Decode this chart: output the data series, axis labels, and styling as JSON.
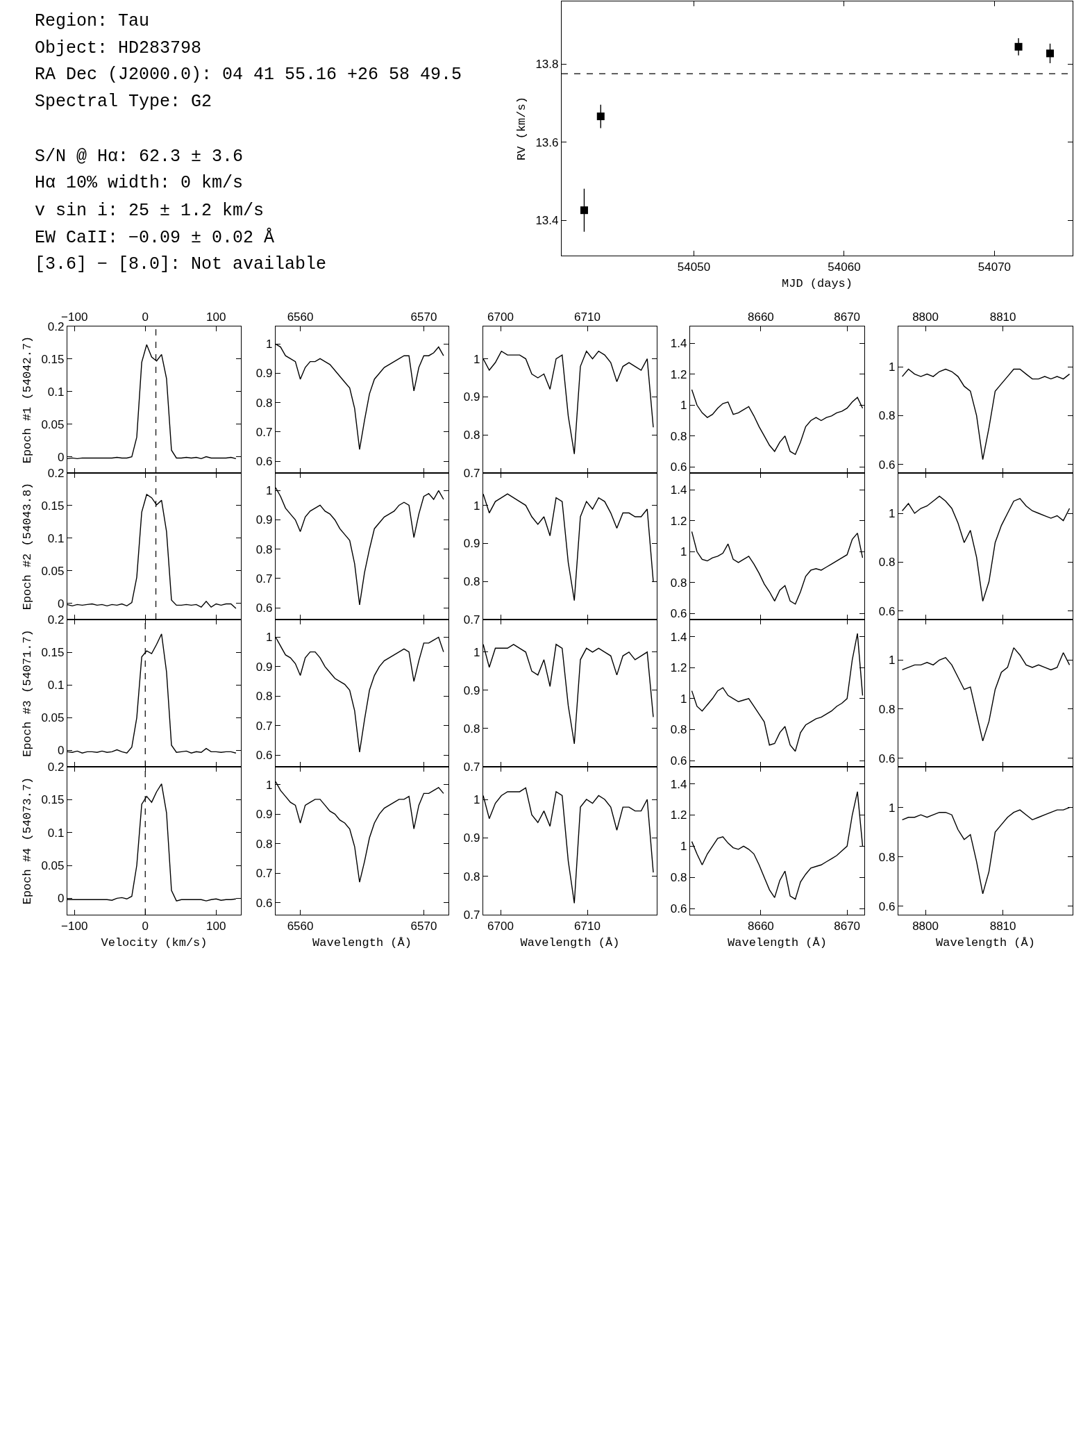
{
  "chart_data": [
    {
      "type": "other",
      "annotations": [
        "Region: Tau",
        "Object: HD283798",
        "RA Dec (J2000.0): 04 41 55.16 +26 58 49.5",
        "Spectral Type: G2",
        "S/N @ Hα: 62.3 ± 3.6",
        "Hα 10% width: 0 km/s",
        "v sin i: 25 ± 1.2 km/s",
        "EW CaII: −0.09 ± 0.02 Å",
        "[3.6] − [8.0]: Not available"
      ]
    },
    {
      "type": "scatter",
      "xlabel": "MJD (days)",
      "ylabel": "RV (km/s)",
      "marker": "square",
      "color": "#000000",
      "x": [
        54042.7,
        54043.8,
        54071.6,
        54073.7
      ],
      "values": [
        13.426,
        13.666,
        13.844,
        13.827
      ],
      "errors": [
        0.055,
        0.03,
        0.022,
        0.025
      ],
      "xlim": [
        54041.2,
        54075.2
      ],
      "ylim": [
        13.31,
        13.96
      ],
      "xticks": [
        54050,
        54060,
        54070
      ],
      "yticks": [
        13.4,
        13.6,
        13.8
      ],
      "ref_lines": [
        {
          "axis": "y",
          "value": 13.775,
          "line_style": "dashed"
        }
      ]
    },
    {
      "type": "line",
      "color": "#000000",
      "ylabel": "Epoch #1 (54042.7)",
      "x": [
        -110,
        -103,
        -96,
        -89,
        -82,
        -75,
        -68,
        -61,
        -54,
        -47,
        -40,
        -33,
        -26,
        -19,
        -12,
        -5,
        2,
        9,
        16,
        23,
        30,
        37,
        44,
        51,
        58,
        65,
        72,
        79,
        86,
        93,
        100,
        107,
        114,
        121,
        128
      ],
      "values": [
        -0.003,
        -0.002,
        -0.003,
        -0.002,
        -0.002,
        -0.002,
        -0.002,
        -0.002,
        -0.002,
        -0.002,
        -0.001,
        -0.002,
        -0.002,
        0.0,
        0.03,
        0.145,
        0.172,
        0.153,
        0.147,
        0.157,
        0.12,
        0.01,
        -0.002,
        -0.002,
        -0.001,
        -0.002,
        -0.001,
        -0.003,
        0.0,
        -0.002,
        -0.002,
        -0.002,
        -0.002,
        -0.001,
        -0.003
      ],
      "xlim": [
        -110,
        135
      ],
      "ylim": [
        -0.025,
        0.2
      ],
      "x2lim": [
        -110,
        135
      ],
      "x2ticks": [
        {
          "value": -100,
          "label": "−100"
        },
        0,
        100
      ],
      "yticks": [
        0,
        0.05,
        0.1,
        0.15,
        0.2
      ],
      "tick_labels": "y",
      "ref_lines": [
        {
          "axis": "x",
          "value": 15,
          "line_style": "dashed"
        }
      ]
    },
    {
      "type": "line",
      "color": "#000000",
      "x": [
        6558,
        6558.4,
        6558.8,
        6559.2,
        6559.6,
        6560,
        6560.4,
        6560.8,
        6561.2,
        6561.6,
        6562,
        6562.4,
        6562.8,
        6563.2,
        6563.6,
        6564,
        6564.4,
        6564.8,
        6565.2,
        6565.6,
        6566,
        6566.4,
        6566.8,
        6567.2,
        6567.6,
        6568,
        6568.4,
        6568.8,
        6569.2,
        6569.6,
        6570,
        6570.4,
        6570.8,
        6571.2,
        6571.6
      ],
      "values": [
        1.0,
        0.99,
        0.96,
        0.95,
        0.94,
        0.88,
        0.92,
        0.94,
        0.94,
        0.95,
        0.94,
        0.93,
        0.91,
        0.89,
        0.87,
        0.85,
        0.78,
        0.64,
        0.74,
        0.83,
        0.88,
        0.9,
        0.92,
        0.93,
        0.94,
        0.95,
        0.96,
        0.96,
        0.84,
        0.92,
        0.96,
        0.96,
        0.97,
        0.99,
        0.96
      ],
      "xlim": [
        6558,
        6572
      ],
      "ylim": [
        0.56,
        1.06
      ],
      "x2lim": [
        6558,
        6572
      ],
      "x2ticks": [
        6560,
        6570
      ],
      "yticks": [
        0.6,
        0.7,
        0.8,
        0.9,
        1
      ],
      "tick_labels": "y"
    },
    {
      "type": "line",
      "color": "#000000",
      "x": [
        6698,
        6698.7,
        6699.4,
        6700.1,
        6700.8,
        6701.5,
        6702.2,
        6702.9,
        6703.6,
        6704.3,
        6705,
        6705.7,
        6706.4,
        6707.1,
        6707.8,
        6708.5,
        6709.2,
        6709.9,
        6710.6,
        6711.3,
        6712,
        6712.7,
        6713.4,
        6714.1,
        6714.8,
        6715.5,
        6716.2,
        6716.9,
        6717.6
      ],
      "values": [
        1.0,
        0.97,
        0.99,
        1.02,
        1.01,
        1.01,
        1.01,
        1.0,
        0.96,
        0.95,
        0.96,
        0.92,
        1.0,
        1.01,
        0.85,
        0.75,
        0.98,
        1.02,
        1.0,
        1.02,
        1.01,
        0.99,
        0.94,
        0.98,
        0.99,
        0.98,
        0.97,
        1.0,
        0.82
      ],
      "xlim": [
        6698,
        6718
      ],
      "ylim": [
        0.7,
        1.085
      ],
      "x2lim": [
        6698,
        6718
      ],
      "x2ticks": [
        6700,
        6710
      ],
      "yticks": [
        0.7,
        0.8,
        0.9,
        1
      ],
      "tick_labels": "y"
    },
    {
      "type": "line",
      "color": "#000000",
      "x": [
        8652,
        8652.6,
        8653.2,
        8653.8,
        8654.4,
        8655,
        8655.6,
        8656.2,
        8656.8,
        8657.4,
        8658,
        8658.6,
        8659.2,
        8659.8,
        8660.4,
        8661,
        8661.6,
        8662.2,
        8662.8,
        8663.4,
        8664,
        8664.6,
        8665.2,
        8665.8,
        8666.4,
        8667,
        8667.6,
        8668.2,
        8668.8,
        8669.4,
        8670,
        8670.6,
        8671.2,
        8671.8
      ],
      "values": [
        1.1,
        1.0,
        0.95,
        0.92,
        0.94,
        0.98,
        1.01,
        1.02,
        0.94,
        0.95,
        0.97,
        0.99,
        0.93,
        0.86,
        0.8,
        0.74,
        0.7,
        0.76,
        0.8,
        0.7,
        0.68,
        0.76,
        0.86,
        0.9,
        0.92,
        0.9,
        0.92,
        0.93,
        0.95,
        0.96,
        0.98,
        1.02,
        1.05,
        0.98
      ],
      "xlim": [
        8651.8,
        8672
      ],
      "ylim": [
        0.56,
        1.51
      ],
      "x2lim": [
        8651.8,
        8672
      ],
      "x2ticks": [
        8660,
        8670
      ],
      "yticks": [
        0.6,
        0.8,
        1,
        1.2,
        1.4
      ],
      "tick_labels": "y"
    },
    {
      "type": "line",
      "color": "#000000",
      "x": [
        8797,
        8797.8,
        8798.6,
        8799.4,
        8800.2,
        8801,
        8801.8,
        8802.6,
        8803.4,
        8804.2,
        8805,
        8805.8,
        8806.6,
        8807.4,
        8808.2,
        8809,
        8809.8,
        8810.6,
        8811.4,
        8812.2,
        8813,
        8813.8,
        8814.6,
        8815.4,
        8816.2,
        8817,
        8817.8,
        8818.6
      ],
      "values": [
        0.96,
        0.99,
        0.97,
        0.96,
        0.97,
        0.96,
        0.98,
        0.99,
        0.98,
        0.96,
        0.92,
        0.9,
        0.8,
        0.62,
        0.75,
        0.9,
        0.93,
        0.96,
        0.99,
        0.99,
        0.97,
        0.95,
        0.95,
        0.96,
        0.95,
        0.96,
        0.95,
        0.97
      ],
      "xlim": [
        8796.5,
        8819
      ],
      "ylim": [
        0.565,
        1.165
      ],
      "x2lim": [
        8796.5,
        8819
      ],
      "x2ticks": [
        8800,
        8810
      ],
      "yticks": [
        0.6,
        0.8,
        1
      ],
      "tick_labels": "y"
    },
    {
      "type": "line",
      "color": "#000000",
      "ylabel": "Epoch #2 (54043.8)",
      "x": [
        -110,
        -103,
        -96,
        -89,
        -82,
        -75,
        -68,
        -61,
        -54,
        -47,
        -40,
        -33,
        -26,
        -19,
        -12,
        -5,
        2,
        9,
        16,
        23,
        30,
        37,
        44,
        51,
        58,
        65,
        72,
        79,
        86,
        93,
        100,
        107,
        114,
        121,
        128
      ],
      "values": [
        -0.002,
        -0.004,
        -0.002,
        -0.003,
        -0.002,
        -0.001,
        -0.003,
        -0.002,
        -0.004,
        -0.002,
        -0.003,
        -0.001,
        -0.004,
        0.001,
        0.04,
        0.14,
        0.167,
        0.162,
        0.151,
        0.158,
        0.11,
        0.005,
        -0.003,
        -0.003,
        -0.002,
        -0.003,
        -0.002,
        -0.006,
        0.003,
        -0.006,
        -0.001,
        -0.003,
        -0.001,
        -0.001,
        -0.008
      ],
      "xlim": [
        -110,
        135
      ],
      "ylim": [
        -0.025,
        0.2
      ],
      "xticks": [
        -100,
        0,
        100
      ],
      "yticks": [
        0,
        0.05,
        0.1,
        0.15,
        0.2
      ],
      "tick_labels": "y",
      "ref_lines": [
        {
          "axis": "x",
          "value": 15,
          "line_style": "dashed"
        }
      ]
    },
    {
      "type": "line",
      "color": "#000000",
      "x": [
        6558,
        6558.4,
        6558.8,
        6559.2,
        6559.6,
        6560,
        6560.4,
        6560.8,
        6561.2,
        6561.6,
        6562,
        6562.4,
        6562.8,
        6563.2,
        6563.6,
        6564,
        6564.4,
        6564.8,
        6565.2,
        6565.6,
        6566,
        6566.4,
        6566.8,
        6567.2,
        6567.6,
        6568,
        6568.4,
        6568.8,
        6569.2,
        6569.6,
        6570,
        6570.4,
        6570.8,
        6571.2,
        6571.6
      ],
      "values": [
        1.01,
        0.98,
        0.94,
        0.92,
        0.9,
        0.86,
        0.91,
        0.93,
        0.94,
        0.95,
        0.93,
        0.92,
        0.9,
        0.87,
        0.85,
        0.83,
        0.75,
        0.61,
        0.72,
        0.8,
        0.87,
        0.89,
        0.91,
        0.92,
        0.93,
        0.95,
        0.96,
        0.95,
        0.84,
        0.92,
        0.98,
        0.99,
        0.97,
        1.0,
        0.97
      ],
      "xlim": [
        6558,
        6572
      ],
      "ylim": [
        0.56,
        1.06
      ],
      "xticks": [
        6560,
        6570
      ],
      "yticks": [
        0.6,
        0.7,
        0.8,
        0.9,
        1
      ],
      "tick_labels": "y"
    },
    {
      "type": "line",
      "color": "#000000",
      "x": [
        6698,
        6698.7,
        6699.4,
        6700.1,
        6700.8,
        6701.5,
        6702.2,
        6702.9,
        6703.6,
        6704.3,
        6705,
        6705.7,
        6706.4,
        6707.1,
        6707.8,
        6708.5,
        6709.2,
        6709.9,
        6710.6,
        6711.3,
        6712,
        6712.7,
        6713.4,
        6714.1,
        6714.8,
        6715.5,
        6716.2,
        6716.9,
        6717.6
      ],
      "values": [
        1.03,
        0.98,
        1.01,
        1.02,
        1.03,
        1.02,
        1.01,
        1.0,
        0.97,
        0.95,
        0.97,
        0.92,
        1.02,
        1.01,
        0.85,
        0.75,
        0.97,
        1.01,
        0.99,
        1.02,
        1.01,
        0.98,
        0.94,
        0.98,
        0.98,
        0.97,
        0.97,
        0.99,
        0.8
      ],
      "xlim": [
        6698,
        6718
      ],
      "ylim": [
        0.7,
        1.085
      ],
      "xticks": [
        6700,
        6710
      ],
      "yticks": [
        0.7,
        0.8,
        0.9,
        1
      ],
      "tick_labels": "y"
    },
    {
      "type": "line",
      "color": "#000000",
      "x": [
        8652,
        8652.6,
        8653.2,
        8653.8,
        8654.4,
        8655,
        8655.6,
        8656.2,
        8656.8,
        8657.4,
        8658,
        8658.6,
        8659.2,
        8659.8,
        8660.4,
        8661,
        8661.6,
        8662.2,
        8662.8,
        8663.4,
        8664,
        8664.6,
        8665.2,
        8665.8,
        8666.4,
        8667,
        8667.6,
        8668.2,
        8668.8,
        8669.4,
        8670,
        8670.6,
        8671.2,
        8671.8
      ],
      "values": [
        1.13,
        1.0,
        0.95,
        0.94,
        0.96,
        0.97,
        0.99,
        1.05,
        0.95,
        0.93,
        0.95,
        0.97,
        0.92,
        0.86,
        0.79,
        0.74,
        0.68,
        0.75,
        0.78,
        0.68,
        0.66,
        0.74,
        0.84,
        0.88,
        0.89,
        0.88,
        0.9,
        0.92,
        0.94,
        0.96,
        0.98,
        1.08,
        1.12,
        0.96
      ],
      "xlim": [
        8651.8,
        8672
      ],
      "ylim": [
        0.56,
        1.51
      ],
      "xticks": [
        8660,
        8670
      ],
      "yticks": [
        0.6,
        0.8,
        1,
        1.2,
        1.4
      ],
      "tick_labels": "y"
    },
    {
      "type": "line",
      "color": "#000000",
      "x": [
        8797,
        8797.8,
        8798.6,
        8799.4,
        8800.2,
        8801,
        8801.8,
        8802.6,
        8803.4,
        8804.2,
        8805,
        8805.8,
        8806.6,
        8807.4,
        8808.2,
        8809,
        8809.8,
        8810.6,
        8811.4,
        8812.2,
        8813,
        8813.8,
        8814.6,
        8815.4,
        8816.2,
        8817,
        8817.8,
        8818.6
      ],
      "values": [
        1.01,
        1.04,
        1.0,
        1.02,
        1.03,
        1.05,
        1.07,
        1.05,
        1.02,
        0.96,
        0.88,
        0.93,
        0.82,
        0.64,
        0.72,
        0.88,
        0.95,
        1.0,
        1.05,
        1.06,
        1.03,
        1.01,
        1.0,
        0.99,
        0.98,
        0.99,
        0.97,
        1.02
      ],
      "xlim": [
        8796.5,
        8819
      ],
      "ylim": [
        0.565,
        1.165
      ],
      "xticks": [
        8800,
        8810
      ],
      "yticks": [
        0.6,
        0.8,
        1
      ],
      "tick_labels": "y"
    },
    {
      "type": "line",
      "color": "#000000",
      "ylabel": "Epoch #3 (54071.7)",
      "x": [
        -110,
        -103,
        -96,
        -89,
        -82,
        -75,
        -68,
        -61,
        -54,
        -47,
        -40,
        -33,
        -26,
        -19,
        -12,
        -5,
        2,
        9,
        16,
        23,
        30,
        37,
        44,
        51,
        58,
        65,
        72,
        79,
        86,
        93,
        100,
        107,
        114,
        121,
        128
      ],
      "values": [
        -0.002,
        -0.003,
        -0.001,
        -0.004,
        -0.002,
        -0.002,
        -0.003,
        -0.001,
        -0.003,
        -0.002,
        0.001,
        -0.002,
        -0.004,
        0.005,
        0.05,
        0.143,
        0.152,
        0.148,
        0.162,
        0.178,
        0.12,
        0.008,
        -0.003,
        -0.002,
        -0.001,
        -0.004,
        -0.002,
        -0.003,
        0.003,
        -0.002,
        -0.002,
        -0.003,
        -0.002,
        -0.002,
        -0.004
      ],
      "xlim": [
        -110,
        135
      ],
      "ylim": [
        -0.025,
        0.2
      ],
      "xticks": [
        -100,
        0,
        100
      ],
      "yticks": [
        0,
        0.05,
        0.1,
        0.15,
        0.2
      ],
      "tick_labels": "y",
      "ref_lines": [
        {
          "axis": "x",
          "value": 0,
          "line_style": "dashed"
        }
      ]
    },
    {
      "type": "line",
      "color": "#000000",
      "x": [
        6558,
        6558.4,
        6558.8,
        6559.2,
        6559.6,
        6560,
        6560.4,
        6560.8,
        6561.2,
        6561.6,
        6562,
        6562.4,
        6562.8,
        6563.2,
        6563.6,
        6564,
        6564.4,
        6564.8,
        6565.2,
        6565.6,
        6566,
        6566.4,
        6566.8,
        6567.2,
        6567.6,
        6568,
        6568.4,
        6568.8,
        6569.2,
        6569.6,
        6570,
        6570.4,
        6570.8,
        6571.2,
        6571.6
      ],
      "values": [
        1.0,
        0.97,
        0.94,
        0.93,
        0.91,
        0.87,
        0.93,
        0.95,
        0.95,
        0.93,
        0.9,
        0.88,
        0.86,
        0.85,
        0.84,
        0.82,
        0.75,
        0.61,
        0.72,
        0.82,
        0.87,
        0.9,
        0.92,
        0.93,
        0.94,
        0.95,
        0.96,
        0.95,
        0.85,
        0.92,
        0.98,
        0.98,
        0.99,
        1.0,
        0.95
      ],
      "xlim": [
        6558,
        6572
      ],
      "ylim": [
        0.56,
        1.06
      ],
      "xticks": [
        6560,
        6570
      ],
      "yticks": [
        0.6,
        0.7,
        0.8,
        0.9,
        1
      ],
      "tick_labels": "y"
    },
    {
      "type": "line",
      "color": "#000000",
      "x": [
        6698,
        6698.7,
        6699.4,
        6700.1,
        6700.8,
        6701.5,
        6702.2,
        6702.9,
        6703.6,
        6704.3,
        6705,
        6705.7,
        6706.4,
        6707.1,
        6707.8,
        6708.5,
        6709.2,
        6709.9,
        6710.6,
        6711.3,
        6712,
        6712.7,
        6713.4,
        6714.1,
        6714.8,
        6715.5,
        6716.2,
        6716.9,
        6717.6
      ],
      "values": [
        1.02,
        0.96,
        1.01,
        1.01,
        1.01,
        1.02,
        1.01,
        1.0,
        0.95,
        0.94,
        0.98,
        0.91,
        1.02,
        1.01,
        0.86,
        0.76,
        0.98,
        1.01,
        1.0,
        1.01,
        1.0,
        0.99,
        0.94,
        0.99,
        1.0,
        0.98,
        0.99,
        1.0,
        0.83
      ],
      "xlim": [
        6698,
        6718
      ],
      "ylim": [
        0.7,
        1.085
      ],
      "xticks": [
        6700,
        6710
      ],
      "yticks": [
        0.7,
        0.8,
        0.9,
        1
      ],
      "tick_labels": "y"
    },
    {
      "type": "line",
      "color": "#000000",
      "x": [
        8652,
        8652.6,
        8653.2,
        8653.8,
        8654.4,
        8655,
        8655.6,
        8656.2,
        8656.8,
        8657.4,
        8658,
        8658.6,
        8659.2,
        8659.8,
        8660.4,
        8661,
        8661.6,
        8662.2,
        8662.8,
        8663.4,
        8664,
        8664.6,
        8665.2,
        8665.8,
        8666.4,
        8667,
        8667.6,
        8668.2,
        8668.8,
        8669.4,
        8670,
        8670.6,
        8671.2,
        8671.8
      ],
      "values": [
        1.05,
        0.95,
        0.92,
        0.96,
        1.0,
        1.05,
        1.07,
        1.02,
        1.0,
        0.98,
        0.99,
        1.0,
        0.95,
        0.9,
        0.85,
        0.7,
        0.71,
        0.78,
        0.82,
        0.7,
        0.66,
        0.78,
        0.83,
        0.85,
        0.87,
        0.88,
        0.9,
        0.92,
        0.95,
        0.97,
        1.0,
        1.25,
        1.42,
        1.02
      ],
      "xlim": [
        8651.8,
        8672
      ],
      "ylim": [
        0.56,
        1.51
      ],
      "xticks": [
        8660,
        8670
      ],
      "yticks": [
        0.6,
        0.8,
        1,
        1.2,
        1.4
      ],
      "tick_labels": "y"
    },
    {
      "type": "line",
      "color": "#000000",
      "x": [
        8797,
        8797.8,
        8798.6,
        8799.4,
        8800.2,
        8801,
        8801.8,
        8802.6,
        8803.4,
        8804.2,
        8805,
        8805.8,
        8806.6,
        8807.4,
        8808.2,
        8809,
        8809.8,
        8810.6,
        8811.4,
        8812.2,
        8813,
        8813.8,
        8814.6,
        8815.4,
        8816.2,
        8817,
        8817.8,
        8818.6
      ],
      "values": [
        0.96,
        0.97,
        0.98,
        0.98,
        0.99,
        0.98,
        1.0,
        1.01,
        0.98,
        0.93,
        0.88,
        0.89,
        0.78,
        0.67,
        0.75,
        0.88,
        0.95,
        0.97,
        1.05,
        1.02,
        0.98,
        0.97,
        0.98,
        0.97,
        0.96,
        0.97,
        1.03,
        0.98
      ],
      "xlim": [
        8796.5,
        8819
      ],
      "ylim": [
        0.565,
        1.165
      ],
      "xticks": [
        8800,
        8810
      ],
      "yticks": [
        0.6,
        0.8,
        1
      ],
      "tick_labels": "y"
    },
    {
      "type": "line",
      "color": "#000000",
      "ylabel": "Epoch #4 (54073.7)",
      "xlabel": "Velocity (km/s)",
      "x": [
        -110,
        -103,
        -96,
        -89,
        -82,
        -75,
        -68,
        -61,
        -54,
        -47,
        -40,
        -33,
        -26,
        -19,
        -12,
        -5,
        2,
        9,
        16,
        23,
        30,
        37,
        44,
        51,
        58,
        65,
        72,
        79,
        86,
        93,
        100,
        107,
        114,
        121,
        128
      ],
      "values": [
        -0.002,
        -0.002,
        -0.002,
        -0.002,
        -0.002,
        -0.002,
        -0.002,
        -0.002,
        -0.002,
        -0.003,
        0.0,
        0.001,
        -0.001,
        0.003,
        0.05,
        0.143,
        0.155,
        0.146,
        0.162,
        0.174,
        0.13,
        0.012,
        -0.004,
        -0.002,
        -0.002,
        -0.002,
        -0.002,
        -0.002,
        -0.004,
        -0.002,
        -0.001,
        -0.003,
        -0.002,
        -0.002,
        -0.001
      ],
      "xlim": [
        -110,
        135
      ],
      "ylim": [
        -0.025,
        0.2
      ],
      "xticks": [
        {
          "value": -100,
          "label": "−100"
        },
        0,
        100
      ],
      "yticks": [
        0,
        0.05,
        0.1,
        0.15,
        0.2
      ],
      "ref_lines": [
        {
          "axis": "x",
          "value": 0,
          "line_style": "dashed"
        }
      ]
    },
    {
      "type": "line",
      "color": "#000000",
      "xlabel": "Wavelength (Å)",
      "x": [
        6558,
        6558.4,
        6558.8,
        6559.2,
        6559.6,
        6560,
        6560.4,
        6560.8,
        6561.2,
        6561.6,
        6562,
        6562.4,
        6562.8,
        6563.2,
        6563.6,
        6564,
        6564.4,
        6564.8,
        6565.2,
        6565.6,
        6566,
        6566.4,
        6566.8,
        6567.2,
        6567.6,
        6568,
        6568.4,
        6568.8,
        6569.2,
        6569.6,
        6570,
        6570.4,
        6570.8,
        6571.2,
        6571.6
      ],
      "values": [
        1.01,
        0.98,
        0.96,
        0.94,
        0.93,
        0.87,
        0.93,
        0.94,
        0.95,
        0.95,
        0.93,
        0.91,
        0.9,
        0.88,
        0.87,
        0.85,
        0.79,
        0.67,
        0.74,
        0.82,
        0.87,
        0.9,
        0.92,
        0.93,
        0.94,
        0.95,
        0.95,
        0.96,
        0.85,
        0.93,
        0.97,
        0.97,
        0.98,
        0.99,
        0.97
      ],
      "xlim": [
        6558,
        6572
      ],
      "ylim": [
        0.56,
        1.06
      ],
      "xticks": [
        6560,
        6570
      ],
      "yticks": [
        0.6,
        0.7,
        0.8,
        0.9,
        1
      ]
    },
    {
      "type": "line",
      "color": "#000000",
      "xlabel": "Wavelength (Å)",
      "x": [
        6698,
        6698.7,
        6699.4,
        6700.1,
        6700.8,
        6701.5,
        6702.2,
        6702.9,
        6703.6,
        6704.3,
        6705,
        6705.7,
        6706.4,
        6707.1,
        6707.8,
        6708.5,
        6709.2,
        6709.9,
        6710.6,
        6711.3,
        6712,
        6712.7,
        6713.4,
        6714.1,
        6714.8,
        6715.5,
        6716.2,
        6716.9,
        6717.6
      ],
      "values": [
        1.01,
        0.95,
        0.99,
        1.01,
        1.02,
        1.02,
        1.02,
        1.03,
        0.96,
        0.94,
        0.97,
        0.93,
        1.02,
        1.01,
        0.84,
        0.73,
        0.98,
        1.0,
        0.99,
        1.01,
        1.0,
        0.98,
        0.92,
        0.98,
        0.98,
        0.97,
        0.97,
        1.0,
        0.81
      ],
      "xlim": [
        6698,
        6718
      ],
      "ylim": [
        0.7,
        1.085
      ],
      "xticks": [
        6700,
        6710
      ],
      "yticks": [
        0.7,
        0.8,
        0.9,
        1
      ]
    },
    {
      "type": "line",
      "color": "#000000",
      "xlabel": "Wavelength (Å)",
      "x": [
        8652,
        8652.6,
        8653.2,
        8653.8,
        8654.4,
        8655,
        8655.6,
        8656.2,
        8656.8,
        8657.4,
        8658,
        8658.6,
        8659.2,
        8659.8,
        8660.4,
        8661,
        8661.6,
        8662.2,
        8662.8,
        8663.4,
        8664,
        8664.6,
        8665.2,
        8665.8,
        8666.4,
        8667,
        8667.6,
        8668.2,
        8668.8,
        8669.4,
        8670,
        8670.6,
        8671.2,
        8671.8
      ],
      "values": [
        1.03,
        0.95,
        0.88,
        0.95,
        1.0,
        1.05,
        1.06,
        1.02,
        0.99,
        0.98,
        1.0,
        0.98,
        0.95,
        0.88,
        0.8,
        0.72,
        0.67,
        0.78,
        0.84,
        0.68,
        0.66,
        0.77,
        0.82,
        0.86,
        0.87,
        0.88,
        0.9,
        0.92,
        0.94,
        0.97,
        1.0,
        1.2,
        1.35,
        1.0
      ],
      "xlim": [
        8651.8,
        8672
      ],
      "ylim": [
        0.56,
        1.51
      ],
      "xticks": [
        8660,
        8670
      ],
      "yticks": [
        0.6,
        0.8,
        1,
        1.2,
        1.4
      ]
    },
    {
      "type": "line",
      "color": "#000000",
      "xlabel": "Wavelength (Å)",
      "x": [
        8797,
        8797.8,
        8798.6,
        8799.4,
        8800.2,
        8801,
        8801.8,
        8802.6,
        8803.4,
        8804.2,
        8805,
        8805.8,
        8806.6,
        8807.4,
        8808.2,
        8809,
        8809.8,
        8810.6,
        8811.4,
        8812.2,
        8813,
        8813.8,
        8814.6,
        8815.4,
        8816.2,
        8817,
        8817.8,
        8818.6
      ],
      "values": [
        0.95,
        0.96,
        0.96,
        0.97,
        0.96,
        0.97,
        0.98,
        0.98,
        0.97,
        0.91,
        0.87,
        0.89,
        0.78,
        0.65,
        0.74,
        0.9,
        0.93,
        0.96,
        0.98,
        0.99,
        0.97,
        0.95,
        0.96,
        0.97,
        0.98,
        0.99,
        0.99,
        1.0
      ],
      "xlim": [
        8796.5,
        8819
      ],
      "ylim": [
        0.565,
        1.165
      ],
      "xticks": [
        8800,
        8810
      ],
      "yticks": [
        0.6,
        0.8,
        1
      ]
    }
  ]
}
